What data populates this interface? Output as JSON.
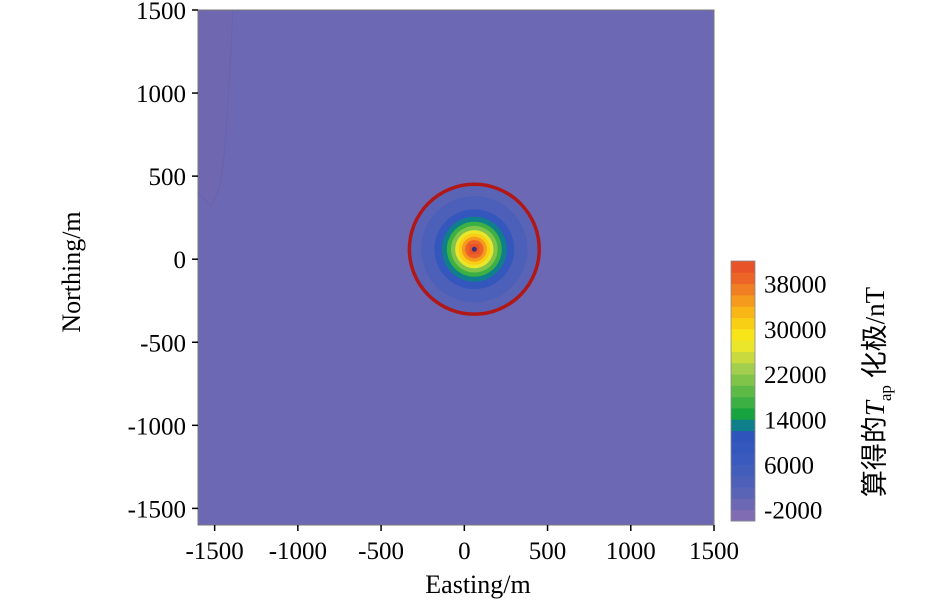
{
  "chart_data": {
    "type": "heatmap",
    "title": "",
    "xlabel": "Easting/m",
    "ylabel": "Northing/m",
    "xlim": [
      -1600,
      1500
    ],
    "ylim": [
      -1600,
      1500
    ],
    "x_ticks": [
      -1500,
      -1000,
      -500,
      0,
      500,
      1000,
      1500
    ],
    "x_tick_labels": [
      "-1500",
      "-1000",
      "-500",
      "0",
      "500",
      "1000",
      "1500"
    ],
    "y_ticks": [
      1500,
      1000,
      500,
      0,
      -500,
      -1000,
      -1500
    ],
    "y_tick_labels": [
      "1500",
      "1000",
      "500",
      "0",
      "-500",
      "-1000",
      "-1500"
    ],
    "background_value": -2000,
    "anomaly": {
      "center_x": 60,
      "center_y": 60,
      "peak_value": 40000,
      "rings": [
        {
          "radius": 420,
          "value": -500
        },
        {
          "radius": 380,
          "value": 1000
        },
        {
          "radius": 320,
          "value": 2500
        },
        {
          "radius": 240,
          "value": 8000
        },
        {
          "radius": 195,
          "value": 12000
        },
        {
          "radius": 165,
          "value": 16000
        },
        {
          "radius": 140,
          "value": 20000
        },
        {
          "radius": 115,
          "value": 26000
        },
        {
          "radius": 95,
          "value": 30000
        },
        {
          "radius": 75,
          "value": 34000
        },
        {
          "radius": 55,
          "value": 38000
        }
      ],
      "outline_radius": 390,
      "outline_color": "#b01818"
    },
    "corner_feature": {
      "description_value": -3000,
      "outline": [
        [
          -1600,
          1500
        ],
        [
          -1390,
          1500
        ],
        [
          -1400,
          1300
        ],
        [
          -1420,
          950
        ],
        [
          -1440,
          650
        ],
        [
          -1470,
          430
        ],
        [
          -1520,
          320
        ],
        [
          -1600,
          400
        ]
      ]
    },
    "colorbar": {
      "title_main": "算得的",
      "title_var": "T",
      "title_sub": "ap",
      "title_tail": " 化极/nT",
      "range": [
        -4000,
        42000
      ],
      "tick_values": [
        38000,
        30000,
        22000,
        14000,
        6000,
        -2000
      ],
      "tick_labels": [
        "38000",
        "30000",
        "22000",
        "14000",
        "6000",
        "-2000"
      ],
      "levels": [
        {
          "value": -3000,
          "color": "#7f6cb3"
        },
        {
          "value": -1000,
          "color": "#6c68b4"
        },
        {
          "value": 1000,
          "color": "#5a64b6"
        },
        {
          "value": 3000,
          "color": "#4d60b9"
        },
        {
          "value": 5000,
          "color": "#435dbb"
        },
        {
          "value": 7000,
          "color": "#3a5abd"
        },
        {
          "value": 9000,
          "color": "#3457bd"
        },
        {
          "value": 11000,
          "color": "#2f55bc"
        },
        {
          "value": 13000,
          "color": "#0f7f8c"
        },
        {
          "value": 15000,
          "color": "#17a33f"
        },
        {
          "value": 17000,
          "color": "#3cb043"
        },
        {
          "value": 19000,
          "color": "#5eba46"
        },
        {
          "value": 21000,
          "color": "#80c44a"
        },
        {
          "value": 23000,
          "color": "#a4cf4e"
        },
        {
          "value": 25000,
          "color": "#c8da3e"
        },
        {
          "value": 27000,
          "color": "#e9e62b"
        },
        {
          "value": 29000,
          "color": "#f7e51a"
        },
        {
          "value": 31000,
          "color": "#f9cf16"
        },
        {
          "value": 33000,
          "color": "#f8b617"
        },
        {
          "value": 35000,
          "color": "#f49a1c"
        },
        {
          "value": 37000,
          "color": "#f07e22"
        },
        {
          "value": 39000,
          "color": "#ec6426"
        },
        {
          "value": 41000,
          "color": "#e8532a"
        }
      ]
    }
  }
}
